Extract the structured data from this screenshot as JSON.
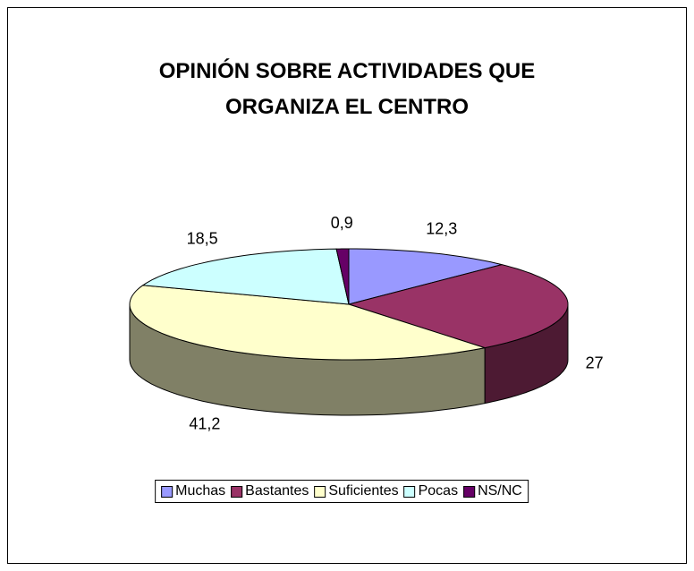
{
  "chart_data": {
    "type": "pie",
    "title": "OPINIÓN SOBRE ACTIVIDADES QUE ORGANIZA EL CENTRO",
    "categories": [
      "Muchas",
      "Bastantes",
      "Suficientes",
      "Pocas",
      "NS/NC"
    ],
    "values": [
      12.3,
      27,
      41.2,
      18.5,
      0.9
    ],
    "value_labels": [
      "12,3",
      "27",
      "41,2",
      "18,5",
      "0,9"
    ],
    "colors": [
      "#9999ff",
      "#993366",
      "#ffffcc",
      "#ccffff",
      "#660066"
    ],
    "legend": "bottom"
  }
}
